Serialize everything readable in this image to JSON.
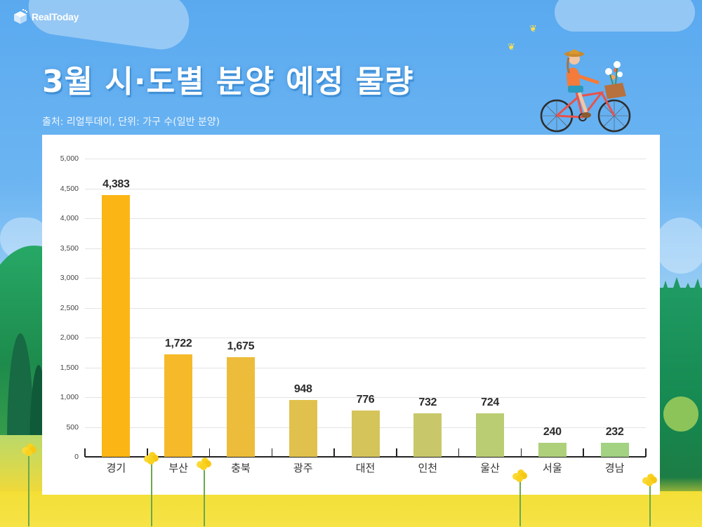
{
  "brand": {
    "logo_text": "RealToday",
    "logo_icon": "cube-pixel-icon"
  },
  "header": {
    "title": "3월 시·도별 분양 예정 물량",
    "subtitle": "출처: 리얼투데이, 단위: 가구 수(일반 분양)"
  },
  "colors": {
    "sky": "#5AA9EF",
    "title_shadow": "#3E8FD6",
    "card_bg": "#FFFFFF",
    "bar_colors": [
      "#FBB515",
      "#F5B92A",
      "#EDBC3A",
      "#E1C14D",
      "#D5C45A",
      "#C8C86A",
      "#BACD72",
      "#AED07A",
      "#A2D282"
    ]
  },
  "chart_data": {
    "type": "bar",
    "title": "3월 시·도별 분양 예정 물량",
    "subtitle": "출처: 리얼투데이, 단위: 가구 수(일반 분양)",
    "xlabel": "",
    "ylabel": "",
    "categories": [
      "경기",
      "부산",
      "충북",
      "광주",
      "대전",
      "인천",
      "울산",
      "서울",
      "경남"
    ],
    "values": [
      4383,
      1722,
      1675,
      948,
      776,
      732,
      724,
      240,
      232
    ],
    "value_labels": [
      "4,383",
      "1,722",
      "1,675",
      "948",
      "776",
      "732",
      "724",
      "240",
      "232"
    ],
    "ylim": [
      0,
      5000
    ],
    "yticks": [
      0,
      500,
      1000,
      1500,
      2000,
      2500,
      3000,
      3500,
      4000,
      4500,
      5000
    ],
    "ytick_labels": [
      "0",
      "500",
      "1,000",
      "1,500",
      "2,000",
      "2,500",
      "3,000",
      "3,500",
      "4,000",
      "4,500",
      "5,000"
    ],
    "grid": true,
    "legend": null,
    "data_labels": true
  }
}
